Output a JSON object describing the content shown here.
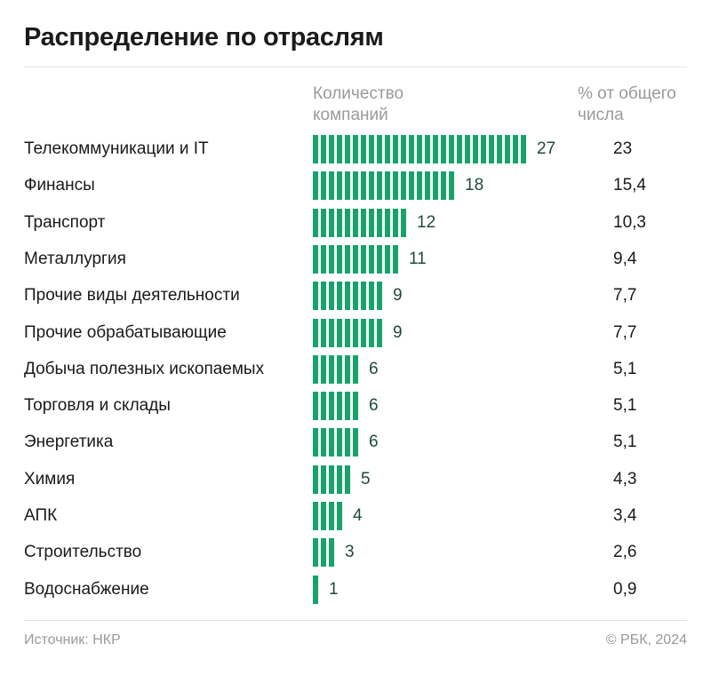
{
  "title": "Распределение по отраслям",
  "header": {
    "count_label": "Количество компаний",
    "percent_label": "% от общего числа"
  },
  "footer": {
    "source": "Источник: НКР",
    "copyright": "© РБК, 2024"
  },
  "colors": {
    "bar": "#17a26b",
    "value_text": "#1f4a3c"
  },
  "chart_data": {
    "type": "bar",
    "orientation": "horizontal",
    "categories": [
      "Телекоммуникации и IT",
      "Финансы",
      "Транспорт",
      "Металлургия",
      "Прочие виды деятельности",
      "Прочие обрабатывающие",
      "Добыча полезных ископаемых",
      "Торговля и склады",
      "Энергетика",
      "Химия",
      "АПК",
      "Строительство",
      "Водоснабжение"
    ],
    "values": [
      27,
      18,
      12,
      11,
      9,
      9,
      6,
      6,
      6,
      5,
      4,
      3,
      1
    ],
    "percent": [
      "23",
      "15,4",
      "10,3",
      "9,4",
      "7,7",
      "7,7",
      "5,1",
      "5,1",
      "5,1",
      "4,3",
      "3,4",
      "2,6",
      "0,9"
    ]
  }
}
